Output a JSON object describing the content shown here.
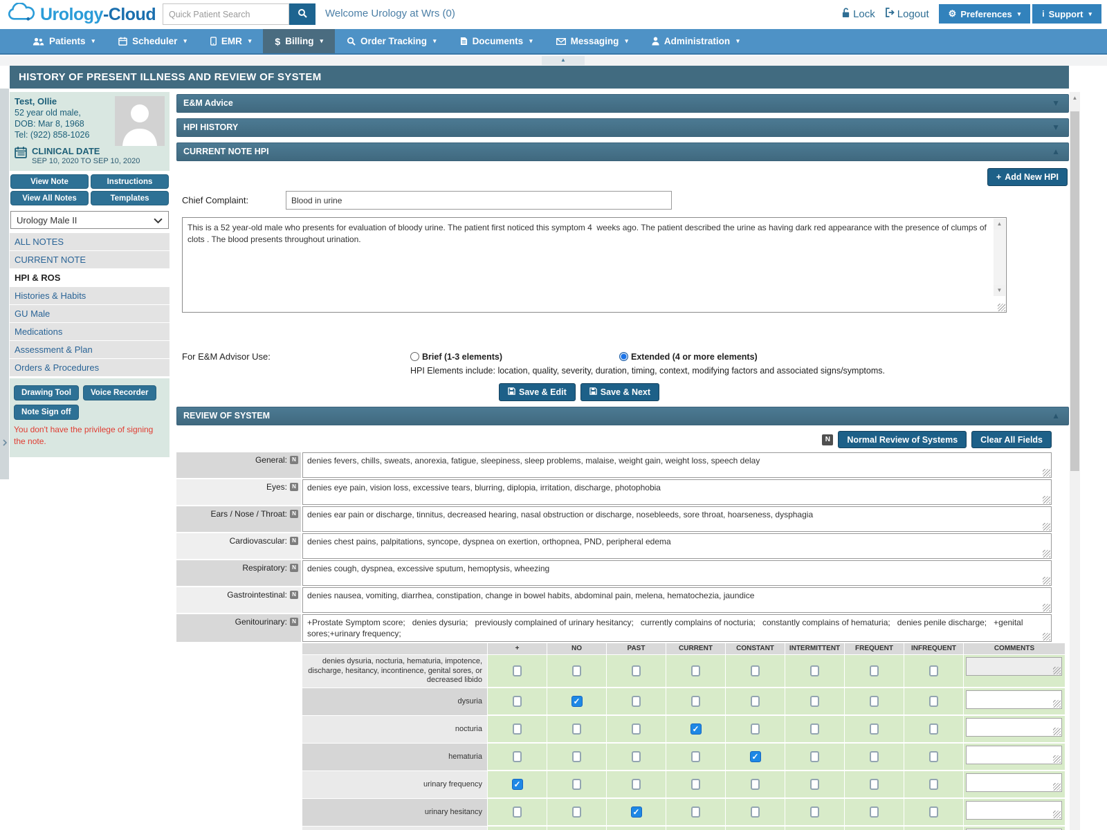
{
  "header": {
    "logo_a": "Urology",
    "logo_b": "-Cloud",
    "search_placeholder": "Quick Patient Search",
    "welcome": "Welcome Urology at Wrs (0)",
    "lock_label": "Lock",
    "logout_label": "Logout",
    "preferences_label": "Preferences",
    "support_label": "Support"
  },
  "nav": {
    "items": [
      {
        "label": "Patients",
        "slug": "patients",
        "icon": "people",
        "active": false
      },
      {
        "label": "Scheduler",
        "slug": "scheduler",
        "icon": "calendar",
        "active": false
      },
      {
        "label": "EMR",
        "slug": "emr",
        "icon": "tablet",
        "active": false
      },
      {
        "label": "Billing",
        "slug": "billing",
        "icon": "dollar",
        "active": true
      },
      {
        "label": "Order Tracking",
        "slug": "order-tracking",
        "icon": "magnifier",
        "active": false
      },
      {
        "label": "Documents",
        "slug": "documents",
        "icon": "document",
        "active": false
      },
      {
        "label": "Messaging",
        "slug": "messaging",
        "icon": "envelope",
        "active": false
      },
      {
        "label": "Administration",
        "slug": "administration",
        "icon": "person",
        "active": false
      }
    ]
  },
  "page_title": "HISTORY OF PRESENT ILLNESS AND REVIEW OF SYSTEM",
  "sidebar": {
    "patient": {
      "name": "Test, Ollie",
      "age_sex": "52 year old male,",
      "dob": "DOB: Mar 8, 1968",
      "tel": "Tel: (922) 858-1026"
    },
    "clinical_date": {
      "label": "CLINICAL DATE",
      "range": "SEP 10, 2020 TO SEP 10, 2020"
    },
    "buttons": {
      "view_note": "View Note",
      "instructions": "Instructions",
      "view_all_notes": "View All Notes",
      "templates": "Templates"
    },
    "template_select": "Urology Male II",
    "menu": [
      {
        "label": "ALL NOTES",
        "slug": "all-notes",
        "active": false
      },
      {
        "label": "CURRENT NOTE",
        "slug": "current-note",
        "active": false
      },
      {
        "label": "HPI & ROS",
        "slug": "hpi-ros",
        "active": true
      },
      {
        "label": "Histories & Habits",
        "slug": "histories-habits",
        "active": false
      },
      {
        "label": "GU Male",
        "slug": "gu-male",
        "active": false
      },
      {
        "label": "Medications",
        "slug": "medications",
        "active": false
      },
      {
        "label": "Assessment & Plan",
        "slug": "assessment-plan",
        "active": false
      },
      {
        "label": "Orders & Procedures",
        "slug": "orders-procedures",
        "active": false
      }
    ],
    "tools": {
      "drawing_tool": "Drawing Tool",
      "voice_recorder": "Voice Recorder",
      "note_sign_off": "Note Sign off"
    },
    "warning": "You don't have the privilege of signing the note."
  },
  "main": {
    "accordions": [
      {
        "label": "E&M Advice",
        "expanded": false
      },
      {
        "label": "HPI HISTORY",
        "expanded": false
      },
      {
        "label": "CURRENT NOTE HPI",
        "expanded": true
      }
    ],
    "add_new_hpi_label": "Add New HPI",
    "chief_complaint": {
      "label": "Chief Complaint:",
      "value": "Blood in urine"
    },
    "hpi_text": "This is a 52 year-old male who presents for evaluation of bloody urine. The patient first noticed this symptom 4  weeks ago. The patient described the urine as having dark red appearance with the presence of clumps of clots . The blood presents throughout urination.",
    "em_advisor": {
      "label": "For E&M Advisor Use:",
      "options": [
        {
          "label": "Brief (1-3 elements)",
          "selected": false
        },
        {
          "label": "Extended (4 or more elements)",
          "selected": true
        }
      ],
      "hint": "HPI Elements include: location, quality, severity, duration, timing, context, modifying factors and associated signs/symptoms."
    },
    "save_edit_label": "Save & Edit",
    "save_next_label": "Save & Next",
    "ros": {
      "title": "REVIEW OF SYSTEM",
      "expanded": true,
      "n_badge": "N",
      "normal_btn": "Normal Review of Systems",
      "clear_btn": "Clear All Fields",
      "rows": [
        {
          "label": "General:",
          "value": "denies fevers, chills, sweats, anorexia, fatigue, sleepiness, sleep problems, malaise, weight gain, weight loss, speech delay"
        },
        {
          "label": "Eyes:",
          "value": "denies eye pain, vision loss, excessive tears, blurring, diplopia, irritation, discharge, photophobia"
        },
        {
          "label": "Ears / Nose / Throat:",
          "value": "denies ear pain or discharge, tinnitus, decreased hearing, nasal obstruction or discharge, nosebleeds, sore throat, hoarseness, dysphagia"
        },
        {
          "label": "Cardiovascular:",
          "value": "denies chest pains, palpitations, syncope, dyspnea on exertion, orthopnea, PND, peripheral edema"
        },
        {
          "label": "Respiratory:",
          "value": "denies cough, dyspnea, excessive sputum, hemoptysis, wheezing"
        },
        {
          "label": "Gastrointestinal:",
          "value": "denies nausea, vomiting, diarrhea, constipation, change in bowel habits, abdominal pain, melena, hematochezia, jaundice"
        },
        {
          "label": "Genitourinary:",
          "value": "+Prostate Symptom score;   denies dysuria;   previously complained of urinary hesitancy;   currently complains of nocturia;   constantly complains of hematuria;   denies penile discharge;   +genital sores;+urinary frequency;"
        }
      ],
      "table": {
        "columns": [
          "+",
          "NO",
          "PAST",
          "CURRENT",
          "CONSTANT",
          "INTERMITTENT",
          "FREQUENT",
          "INFREQUENT",
          "COMMENTS"
        ],
        "rows": [
          {
            "label": "denies dysuria, nocturia, hematuria, impotence, discharge, hesitancy, incontinence, genital sores, or decreased libido",
            "checked": [],
            "comment": "",
            "comment_muted": true
          },
          {
            "label": "dysuria",
            "checked": [
              "NO"
            ],
            "comment": ""
          },
          {
            "label": "nocturia",
            "checked": [
              "CURRENT"
            ],
            "comment": ""
          },
          {
            "label": "hematuria",
            "checked": [
              "CONSTANT"
            ],
            "comment": ""
          },
          {
            "label": "urinary frequency",
            "checked": [
              "+"
            ],
            "comment": ""
          },
          {
            "label": "urinary hesitancy",
            "checked": [
              "PAST"
            ],
            "comment": ""
          },
          {
            "label": "",
            "checked": [
              "NO"
            ],
            "comment": ""
          }
        ]
      }
    }
  },
  "colors": {
    "nav_blue": "#4e92c6",
    "nav_active": "#4a6c80",
    "title_bar": "#416b80",
    "accordion": "#47748e",
    "button_dark": "#1d6088",
    "sidebar_button": "#2e7195",
    "sidebar_panel": "#d9e7e1",
    "menu_item_bg": "#e3e3e3",
    "menu_item_text": "#2a6496",
    "warning_red": "#e03c31",
    "table_green": "#d8ebc9",
    "checked_blue": "#1e88e5"
  }
}
